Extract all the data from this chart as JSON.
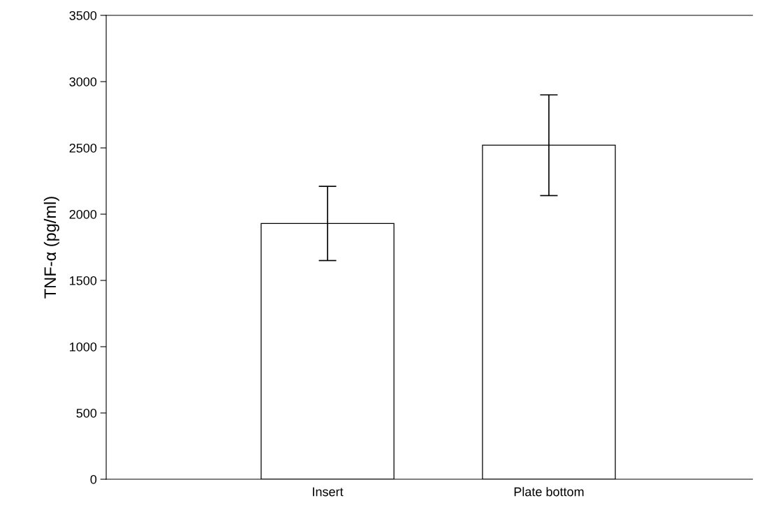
{
  "chart_data": {
    "type": "bar",
    "ylabel": "TNF-α (pg/ml)",
    "categories": [
      "Insert",
      "Plate bottom"
    ],
    "values": [
      1930,
      2520
    ],
    "errors": [
      280,
      380
    ],
    "color": "#ffffff",
    "ylim": [
      0,
      3500
    ],
    "yticks": [
      0,
      500,
      1000,
      1500,
      2000,
      2500,
      3000,
      3500
    ],
    "grid": false
  }
}
